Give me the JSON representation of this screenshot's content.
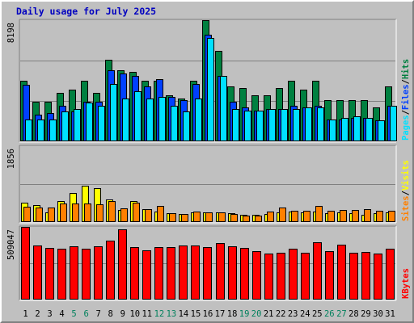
{
  "title": "Daily usage for July 2025",
  "colors": {
    "background": "#c0c0c0",
    "hits": "#008040",
    "files": "#0040ff",
    "pages": "#00e0ff",
    "visits": "#ffff00",
    "sites": "#ff8000",
    "kbytes": "#ff0000",
    "title": "#0000c0",
    "weekend_label": "#00805c"
  },
  "labels": {
    "top_panel": [
      "Pages",
      "/",
      "Files",
      "/",
      "Hits"
    ],
    "middle_panel": [
      "Sites",
      "/",
      "Visits"
    ],
    "bottom_panel": [
      "KBytes"
    ]
  },
  "chart_data": {
    "type": "bar",
    "title": "Daily usage for July 2025",
    "categories": [
      "1",
      "2",
      "3",
      "4",
      "5",
      "6",
      "7",
      "8",
      "9",
      "10",
      "11",
      "12",
      "13",
      "14",
      "15",
      "16",
      "17",
      "18",
      "19",
      "20",
      "21",
      "22",
      "23",
      "24",
      "25",
      "26",
      "27",
      "28",
      "29",
      "30",
      "31"
    ],
    "weekend_days": [
      "5",
      "6",
      "12",
      "13",
      "19",
      "20",
      "26",
      "27"
    ],
    "panels": [
      {
        "name": "top",
        "max_label": "8198",
        "ylim": [
          0,
          8198
        ],
        "grid": true,
        "series": [
          {
            "name": "Hits",
            "color": "#008040",
            "values": [
              4100,
              2700,
              2700,
              3300,
              3500,
              4100,
              3300,
              5500,
              4800,
              4700,
              4100,
              4100,
              3100,
              2900,
              4100,
              8198,
              6100,
              3700,
              3600,
              3100,
              3100,
              3600,
              4100,
              3500,
              4100,
              2800,
              2800,
              2800,
              2800,
              2300,
              3700
            ]
          },
          {
            "name": "Files",
            "color": "#0040ff",
            "values": [
              3800,
              1800,
              1900,
              2400,
              2000,
              2700,
              2700,
              4800,
              4600,
              4400,
              3700,
              4200,
              3000,
              2800,
              3900,
              7200,
              4400,
              2700,
              2300,
              2100,
              2200,
              2200,
              2400,
              2300,
              2400,
              1500,
              1500,
              1600,
              1600,
              1400,
              2400
            ]
          },
          {
            "name": "Pages",
            "color": "#00e0ff",
            "values": [
              1500,
              1500,
              1500,
              2000,
              2200,
              2600,
              2400,
              3900,
              2900,
              3400,
              2900,
              3000,
              2400,
              2000,
              2900,
              7000,
              4400,
              2200,
              2100,
              2100,
              2200,
              2200,
              2200,
              2300,
              2300,
              1500,
              1600,
              1700,
              1600,
              1400,
              2400
            ]
          }
        ]
      },
      {
        "name": "middle",
        "max_label": "1856",
        "ylim": [
          0,
          1856
        ],
        "grid": true,
        "series": [
          {
            "name": "Visits",
            "color": "#ffff00",
            "values": [
              480,
              420,
              230,
              520,
              710,
              890,
              820,
              550,
              300,
              520,
              320,
              260,
              210,
              190,
              230,
              240,
              240,
              210,
              170,
              170,
              190,
              230,
              250,
              230,
              260,
              210,
              230,
              220,
              180,
              210,
              230
            ]
          },
          {
            "name": "Sites",
            "color": "#ff8000",
            "values": [
              380,
              360,
              360,
              450,
              450,
              450,
              430,
              510,
              330,
              480,
              320,
              390,
              210,
              200,
              250,
              240,
              240,
              200,
              150,
              150,
              260,
              350,
              280,
              270,
              390,
              280,
              290,
              300,
              310,
              270,
              270
            ]
          }
        ]
      },
      {
        "name": "bottom",
        "max_label": "509047",
        "ylim": [
          0,
          509047
        ],
        "grid": true,
        "series": [
          {
            "name": "KBytes",
            "color": "#ff0000",
            "values": [
              509047,
              380000,
              360000,
              355000,
              375000,
              355000,
              375000,
              415000,
              490000,
              365000,
              345000,
              365000,
              365000,
              380000,
              380000,
              370000,
              395000,
              375000,
              360000,
              340000,
              325000,
              330000,
              355000,
              330000,
              400000,
              340000,
              385000,
              330000,
              335000,
              325000,
              355000
            ]
          }
        ]
      }
    ]
  }
}
